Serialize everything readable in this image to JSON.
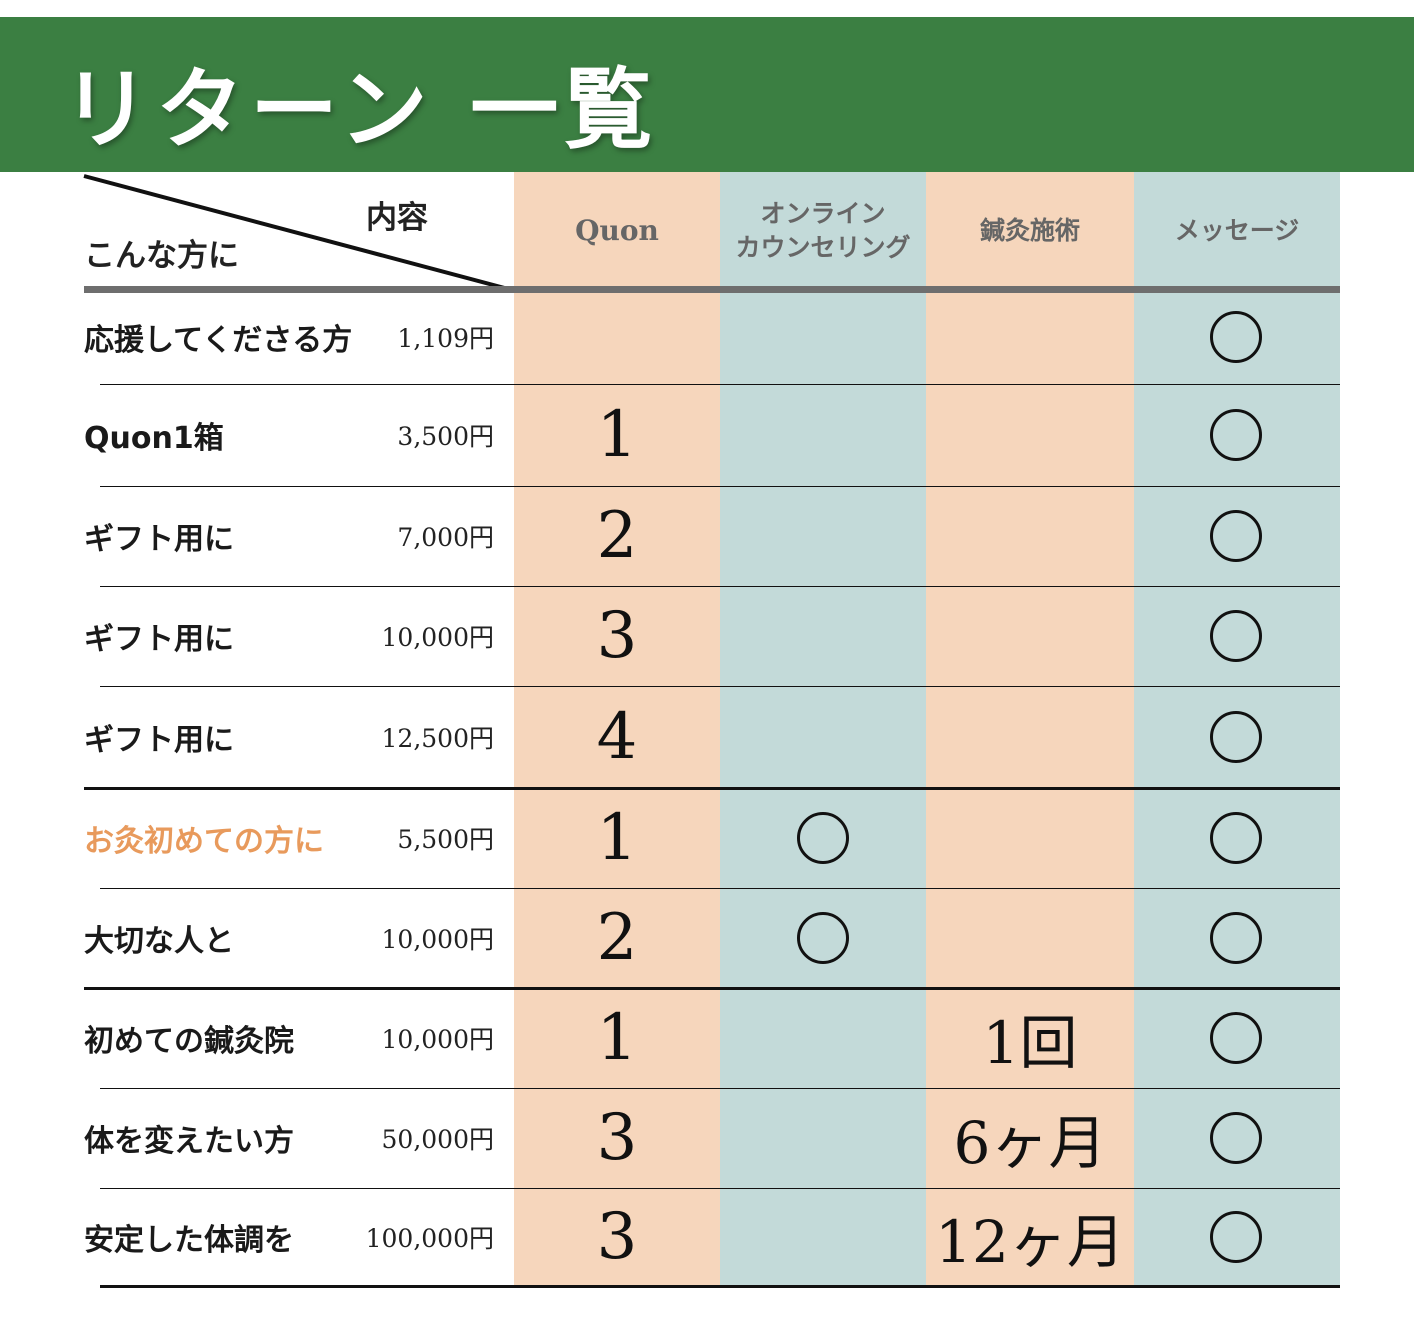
{
  "title": "リターン 一覧",
  "corner": {
    "content": "内容",
    "target": "こんな方に"
  },
  "columns": [
    "Quon",
    "オンライン\nカウンセリング",
    "鍼灸施術",
    "メッセージ"
  ],
  "rows": [
    {
      "label": "応援してくださる方",
      "price": "1,109円",
      "quon": "",
      "online": false,
      "acu": "",
      "message": true
    },
    {
      "label": "Quon1箱",
      "price": "3,500円",
      "quon": "1",
      "online": false,
      "acu": "",
      "message": true
    },
    {
      "label": "ギフト用に",
      "price": "7,000円",
      "quon": "2",
      "online": false,
      "acu": "",
      "message": true
    },
    {
      "label": "ギフト用に",
      "price": "10,000円",
      "quon": "3",
      "online": false,
      "acu": "",
      "message": true
    },
    {
      "label": "ギフト用に",
      "price": "12,500円",
      "quon": "4",
      "online": false,
      "acu": "",
      "message": true
    },
    {
      "label": "お灸初めての方に",
      "price": "5,500円",
      "quon": "1",
      "online": true,
      "acu": "",
      "message": true,
      "highlight": true
    },
    {
      "label": "大切な人と",
      "price": "10,000円",
      "quon": "2",
      "online": true,
      "acu": "",
      "message": true
    },
    {
      "label": "初めての鍼灸院",
      "price": "10,000円",
      "quon": "1",
      "online": false,
      "acu": "1回",
      "message": true
    },
    {
      "label": "体を変えたい方",
      "price": "50,000円",
      "quon": "3",
      "online": false,
      "acu": "6ヶ月",
      "message": true
    },
    {
      "label": "安定した体調を",
      "price": "100,000円",
      "quon": "3",
      "online": false,
      "acu": "12ヶ月",
      "message": true
    }
  ],
  "colors": {
    "banner": "#3b7f42",
    "peach": "#f6d6bc",
    "teal": "#c3dad9",
    "highlight": "#e89a5c"
  }
}
